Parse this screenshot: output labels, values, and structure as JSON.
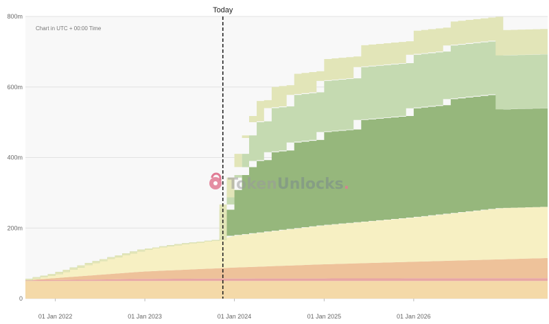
{
  "chart_data": {
    "type": "area",
    "stacked": true,
    "note": "Chart in UTC + 00:00 Time",
    "today_label": "Today",
    "today_date": "2023-11-15",
    "watermark": {
      "part1": "Token",
      "part2": "Unlocks",
      "dot": "."
    },
    "x_range": [
      "2021-09-01",
      "2027-07-01"
    ],
    "ylim": [
      0,
      800000000
    ],
    "grid": true,
    "yticks": [
      {
        "value": 0,
        "label": "0"
      },
      {
        "value": 200000000,
        "label": "200m"
      },
      {
        "value": 400000000,
        "label": "400m"
      },
      {
        "value": 600000000,
        "label": "600m"
      },
      {
        "value": 800000000,
        "label": "800m"
      }
    ],
    "xticks": [
      {
        "date": "2022-01-01",
        "label": "01 Jan 2022"
      },
      {
        "date": "2023-01-01",
        "label": "01 Jan 2023"
      },
      {
        "date": "2024-01-01",
        "label": "01 Jan 2024"
      },
      {
        "date": "2025-01-01",
        "label": "01 Jan 2025"
      },
      {
        "date": "2026-01-01",
        "label": "01 Jan 2026"
      }
    ],
    "series": [
      {
        "color": "#f4d9a8",
        "step": false,
        "points": [
          [
            "2021-09-01",
            50000000
          ],
          [
            "2027-07-01",
            50000000
          ]
        ]
      },
      {
        "color": "#e8a6a6",
        "step": false,
        "points": [
          [
            "2021-09-01",
            2000000
          ],
          [
            "2022-06-01",
            4000000
          ],
          [
            "2023-01-01",
            6000000
          ],
          [
            "2024-01-01",
            7000000
          ],
          [
            "2027-07-01",
            8000000
          ]
        ]
      },
      {
        "color": "#eec29a",
        "step": false,
        "points": [
          [
            "2021-09-01",
            0
          ],
          [
            "2022-06-01",
            12000000
          ],
          [
            "2023-01-01",
            21000000
          ],
          [
            "2024-01-01",
            31000000
          ],
          [
            "2025-01-01",
            40000000
          ],
          [
            "2026-01-01",
            47000000
          ],
          [
            "2027-07-01",
            57000000
          ]
        ]
      },
      {
        "color": "#f7f0c3",
        "step": false,
        "points": [
          [
            "2021-09-01",
            0
          ],
          [
            "2022-01-01",
            11000000
          ],
          [
            "2022-06-01",
            35000000
          ],
          [
            "2023-01-01",
            62000000
          ],
          [
            "2023-06-01",
            73000000
          ],
          [
            "2023-11-01",
            80000000
          ],
          [
            "2024-01-01",
            90000000
          ],
          [
            "2025-01-01",
            110000000
          ],
          [
            "2026-01-01",
            125000000
          ],
          [
            "2027-01-01",
            145000000
          ],
          [
            "2027-07-01",
            145000000
          ]
        ]
      },
      {
        "color": "#96b77c",
        "step": true,
        "points": [
          [
            "2021-09-01",
            0
          ],
          [
            "2023-12-01",
            0
          ],
          [
            "2023-12-01",
            80000000
          ],
          [
            "2024-01-01",
            130000000
          ],
          [
            "2024-02-01",
            170000000
          ],
          [
            "2024-03-01",
            190000000
          ],
          [
            "2024-04-01",
            205000000
          ],
          [
            "2024-06-01",
            225000000
          ],
          [
            "2024-09-01",
            245000000
          ],
          [
            "2025-01-01",
            265000000
          ],
          [
            "2025-06-01",
            290000000
          ],
          [
            "2026-01-01",
            310000000
          ],
          [
            "2026-06-01",
            325000000
          ],
          [
            "2027-01-01",
            280000000
          ],
          [
            "2027-07-01",
            280000000
          ]
        ]
      },
      {
        "color": "#c5dab1",
        "step": true,
        "points": [
          [
            "2021-09-01",
            0
          ],
          [
            "2023-12-01",
            0
          ],
          [
            "2023-12-01",
            15000000
          ],
          [
            "2024-01-01",
            35000000
          ],
          [
            "2024-02-01",
            60000000
          ],
          [
            "2024-03-01",
            90000000
          ],
          [
            "2024-04-01",
            110000000
          ],
          [
            "2024-06-01",
            125000000
          ],
          [
            "2024-09-01",
            135000000
          ],
          [
            "2025-01-01",
            145000000
          ],
          [
            "2025-06-01",
            150000000
          ],
          [
            "2026-01-01",
            152000000
          ],
          [
            "2027-01-01",
            153000000
          ],
          [
            "2027-07-01",
            153000000
          ]
        ]
      },
      {
        "color": "#e2e5b8",
        "step": true,
        "points": [
          [
            "2021-09-01",
            0
          ],
          [
            "2023-12-01",
            0
          ],
          [
            "2023-12-01",
            20000000
          ],
          [
            "2024-01-01",
            30000000
          ],
          [
            "2024-02-01",
            45000000
          ],
          [
            "2024-03-01",
            55000000
          ],
          [
            "2024-04-01",
            60000000
          ],
          [
            "2024-06-01",
            60000000
          ],
          [
            "2025-01-01",
            62000000
          ],
          [
            "2026-01-01",
            68000000
          ],
          [
            "2027-01-01",
            72000000
          ],
          [
            "2027-07-01",
            72000000
          ]
        ]
      }
    ]
  }
}
